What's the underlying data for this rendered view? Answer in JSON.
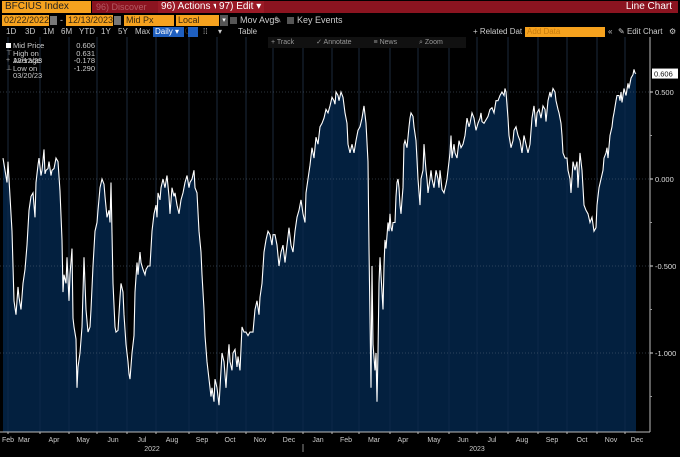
{
  "header": {
    "ticker": "BFCIUS Index",
    "discover_label": "96) Discover",
    "actions_label": "96) Actions",
    "edit_label": "97) Edit",
    "view_title": "Line Chart"
  },
  "controls": {
    "start_date": "02/22/2022",
    "end_date": "12/13/2023",
    "date_separator": "-",
    "field": "Mid Px",
    "currency": "Local CCY",
    "mov_avgs_label": "Mov Avgs",
    "key_events_label": "Key Events",
    "ranges": [
      "1D",
      "3D",
      "1M",
      "6M",
      "YTD",
      "1Y",
      "5Y",
      "Max"
    ],
    "frequency": "Daily",
    "table_label": "Table",
    "related_data_label": "+ Related Dat",
    "add_data_placeholder": "Add Data",
    "collapse_label": "«",
    "edit_chart_label": "Edit Chart"
  },
  "tools": {
    "track": "Track",
    "annotate": "Annotate",
    "news": "News",
    "zoom": "Zoom"
  },
  "legend": [
    {
      "name": "Mid Price",
      "value": "0.606",
      "glyph": "swatch"
    },
    {
      "name": "High on 12/12/23",
      "value": "0.631",
      "glyph": "T"
    },
    {
      "name": "Average",
      "value": "-0.178",
      "glyph": "+"
    },
    {
      "name": "Low on 03/20/23",
      "value": "-1.290",
      "glyph": "⊥"
    }
  ],
  "colors": {
    "ticker_bg": "#f6a21e",
    "header_red": "#8b1420",
    "fill": "#03203f",
    "line": "#ffffff",
    "daily_blue": "#1f5fbf"
  },
  "chart_data": {
    "type": "area",
    "title": "BFCIUS Index",
    "series_name": "Mid Price",
    "xlabel": "",
    "ylabel": "",
    "ylim": [
      -1.45,
      0.75
    ],
    "yticks": [
      0.5,
      0.0,
      -0.5,
      -1.0
    ],
    "ytick_labels": [
      "0.500",
      "0.000",
      "-0.500",
      "-1.000"
    ],
    "last_value": 0.606,
    "last_value_label": "0.606",
    "high": {
      "date": "12/12/23",
      "value": 0.631
    },
    "average": -0.178,
    "low": {
      "date": "03/20/23",
      "value": -1.29
    },
    "x_ticks": [
      "Feb",
      "Mar",
      "Apr",
      "May",
      "Jun",
      "Jul",
      "Aug",
      "Sep",
      "Oct",
      "Nov",
      "Dec",
      "Jan",
      "Feb",
      "Mar",
      "Apr",
      "May",
      "Jun",
      "Jul",
      "Aug",
      "Sep",
      "Oct",
      "Nov",
      "Dec"
    ],
    "x_years": [
      {
        "label": "2022",
        "pos": "Jul-Aug 2022"
      },
      {
        "label": "2023",
        "pos": "Jun-Jul 2023"
      }
    ],
    "grid": true,
    "approx_points": [
      [
        3,
        0.12
      ],
      [
        5,
        0.05
      ],
      [
        7,
        -0.02
      ],
      [
        8,
        0.1
      ],
      [
        10,
        -0.1
      ],
      [
        12,
        -0.3
      ],
      [
        13,
        -0.5
      ],
      [
        14,
        -0.7
      ],
      [
        16,
        -0.78
      ],
      [
        18,
        -0.62
      ],
      [
        19,
        -0.68
      ],
      [
        21,
        -0.75
      ],
      [
        23,
        -0.6
      ],
      [
        25,
        -0.52
      ],
      [
        27,
        -0.38
      ],
      [
        29,
        -0.18
      ],
      [
        31,
        -0.1
      ],
      [
        33,
        -0.08
      ],
      [
        35,
        -0.22
      ],
      [
        36,
        -0.02
      ],
      [
        38,
        0.08
      ],
      [
        39,
        0.12
      ],
      [
        41,
        0.02
      ],
      [
        42,
        0.05
      ],
      [
        44,
        0.17
      ],
      [
        45,
        0.03
      ],
      [
        46,
        0.05
      ],
      [
        48,
        0.06
      ],
      [
        49,
        0.1
      ],
      [
        51,
        0.02
      ],
      [
        52,
        0.05
      ],
      [
        54,
        0.06
      ],
      [
        56,
        0.12
      ],
      [
        58,
        0.1
      ],
      [
        60,
        -0.07
      ],
      [
        62,
        -0.35
      ],
      [
        63,
        -0.65
      ],
      [
        64,
        -0.55
      ],
      [
        66,
        -0.6
      ],
      [
        67,
        -0.45
      ],
      [
        69,
        -0.7
      ],
      [
        70,
        -0.55
      ],
      [
        72,
        -0.4
      ],
      [
        73,
        -0.8
      ],
      [
        74,
        -0.85
      ],
      [
        76,
        -0.92
      ],
      [
        77,
        -1.2
      ],
      [
        78,
        -1.08
      ],
      [
        80,
        -1.0
      ],
      [
        82,
        -0.85
      ],
      [
        83,
        -0.65
      ],
      [
        84,
        -0.45
      ],
      [
        86,
        -0.75
      ],
      [
        88,
        -0.88
      ],
      [
        90,
        -0.85
      ],
      [
        91,
        -0.75
      ],
      [
        93,
        -0.5
      ],
      [
        95,
        -0.3
      ],
      [
        97,
        -0.25
      ],
      [
        98,
        -0.18
      ],
      [
        100,
        -0.05
      ],
      [
        102,
        0.0
      ],
      [
        104,
        -0.03
      ],
      [
        105,
        -0.1
      ],
      [
        107,
        -0.22
      ],
      [
        109,
        -0.18
      ],
      [
        110,
        -0.25
      ],
      [
        111,
        -0.02
      ],
      [
        113,
        -0.6
      ],
      [
        115,
        -0.85
      ],
      [
        116,
        -0.88
      ],
      [
        118,
        -0.87
      ],
      [
        120,
        -0.68
      ],
      [
        121,
        -0.6
      ],
      [
        123,
        -0.65
      ],
      [
        124,
        -0.78
      ],
      [
        126,
        -0.95
      ],
      [
        128,
        -1.05
      ],
      [
        129,
        -1.12
      ],
      [
        130,
        -1.15
      ],
      [
        132,
        -1.0
      ],
      [
        134,
        -0.9
      ],
      [
        135,
        -0.65
      ],
      [
        137,
        -0.48
      ],
      [
        138,
        -0.55
      ],
      [
        140,
        -0.42
      ],
      [
        141,
        -0.48
      ],
      [
        143,
        -0.52
      ],
      [
        145,
        -0.55
      ],
      [
        146,
        -0.52
      ],
      [
        148,
        -0.5
      ],
      [
        150,
        -0.5
      ],
      [
        152,
        -0.3
      ],
      [
        154,
        -0.2
      ],
      [
        156,
        -0.15
      ],
      [
        157,
        -0.22
      ],
      [
        158,
        -0.08
      ],
      [
        160,
        -0.12
      ],
      [
        161,
        -0.05
      ],
      [
        163,
        0.0
      ],
      [
        165,
        -0.05
      ],
      [
        167,
        0.02
      ],
      [
        169,
        -0.1
      ],
      [
        170,
        -0.2
      ],
      [
        172,
        -0.05
      ],
      [
        174,
        -0.1
      ],
      [
        175,
        -0.08
      ],
      [
        177,
        -0.15
      ],
      [
        179,
        -0.2
      ],
      [
        181,
        -0.12
      ],
      [
        183,
        -0.08
      ],
      [
        185,
        -0.02
      ],
      [
        187,
        0.02
      ],
      [
        189,
        -0.05
      ],
      [
        190,
        -0.02
      ],
      [
        192,
        0.0
      ],
      [
        194,
        0.05
      ],
      [
        195,
        -0.05
      ],
      [
        197,
        -0.08
      ],
      [
        199,
        -0.3
      ],
      [
        201,
        -0.42
      ],
      [
        202,
        -0.55
      ],
      [
        204,
        -0.75
      ],
      [
        205,
        -0.9
      ],
      [
        207,
        -1.05
      ],
      [
        209,
        -1.15
      ],
      [
        211,
        -1.25
      ],
      [
        212,
        -1.2
      ],
      [
        214,
        -1.28
      ],
      [
        215,
        -1.15
      ],
      [
        217,
        -1.2
      ],
      [
        219,
        -1.3
      ],
      [
        221,
        -1.1
      ],
      [
        222,
        -1.0
      ],
      [
        224,
        -1.05
      ],
      [
        226,
        -1.2
      ],
      [
        227,
        -1.1
      ],
      [
        229,
        -0.95
      ],
      [
        230,
        -1.05
      ],
      [
        232,
        -1.1
      ],
      [
        233,
        -1.0
      ],
      [
        235,
        -0.98
      ],
      [
        237,
        -1.08
      ],
      [
        238,
        -1.02
      ],
      [
        240,
        -1.1
      ],
      [
        242,
        -0.85
      ],
      [
        244,
        -0.88
      ],
      [
        246,
        -0.88
      ],
      [
        248,
        -0.9
      ],
      [
        250,
        -0.88
      ],
      [
        253,
        -0.88
      ],
      [
        255,
        -0.75
      ],
      [
        257,
        -0.7
      ],
      [
        259,
        -0.78
      ],
      [
        260,
        -0.68
      ],
      [
        262,
        -0.6
      ],
      [
        264,
        -0.42
      ],
      [
        266,
        -0.35
      ],
      [
        268,
        -0.3
      ],
      [
        270,
        -0.32
      ],
      [
        272,
        -0.38
      ],
      [
        273,
        -0.32
      ],
      [
        275,
        -0.32
      ],
      [
        277,
        -0.38
      ],
      [
        279,
        -0.5
      ],
      [
        281,
        -0.42
      ],
      [
        283,
        -0.38
      ],
      [
        285,
        -0.48
      ],
      [
        287,
        -0.38
      ],
      [
        289,
        -0.28
      ],
      [
        291,
        -0.38
      ],
      [
        293,
        -0.42
      ],
      [
        295,
        -0.3
      ],
      [
        297,
        -0.22
      ],
      [
        299,
        -0.18
      ],
      [
        301,
        -0.12
      ],
      [
        303,
        -0.2
      ],
      [
        305,
        -0.25
      ],
      [
        306,
        -0.08
      ],
      [
        308,
        0.0
      ],
      [
        310,
        0.08
      ],
      [
        312,
        0.18
      ],
      [
        314,
        0.12
      ],
      [
        316,
        0.24
      ],
      [
        318,
        0.2
      ],
      [
        320,
        0.3
      ],
      [
        322,
        0.32
      ],
      [
        324,
        0.35
      ],
      [
        326,
        0.4
      ],
      [
        328,
        0.38
      ],
      [
        330,
        0.42
      ],
      [
        332,
        0.47
      ],
      [
        334,
        0.45
      ],
      [
        335,
        0.43
      ],
      [
        336,
        0.5
      ],
      [
        338,
        0.48
      ],
      [
        339,
        0.45
      ],
      [
        341,
        0.5
      ],
      [
        343,
        0.47
      ],
      [
        345,
        0.38
      ],
      [
        347,
        0.32
      ],
      [
        348,
        0.2
      ],
      [
        350,
        0.15
      ],
      [
        352,
        0.2
      ],
      [
        354,
        0.15
      ],
      [
        356,
        0.22
      ],
      [
        358,
        0.28
      ],
      [
        360,
        0.3
      ],
      [
        362,
        0.35
      ],
      [
        364,
        0.42
      ],
      [
        366,
        0.32
      ],
      [
        368,
        0.1
      ],
      [
        369,
        -0.4
      ],
      [
        370,
        -0.8
      ],
      [
        371,
        -1.2
      ],
      [
        372,
        -0.5
      ],
      [
        373,
        -0.95
      ],
      [
        375,
        -1.1
      ],
      [
        376,
        -1.0
      ],
      [
        377,
        -1.28
      ],
      [
        378,
        -1.0
      ],
      [
        379,
        -0.6
      ],
      [
        380,
        -0.45
      ],
      [
        381,
        -0.55
      ],
      [
        382,
        -0.65
      ],
      [
        383,
        -0.75
      ],
      [
        384,
        -0.5
      ],
      [
        385,
        -0.35
      ],
      [
        386,
        -0.4
      ],
      [
        388,
        -0.25
      ],
      [
        389,
        -0.3
      ],
      [
        390,
        -0.2
      ],
      [
        391,
        -0.28
      ],
      [
        392,
        -0.3
      ],
      [
        393,
        -0.25
      ],
      [
        395,
        -0.25
      ],
      [
        396,
        -0.1
      ],
      [
        397,
        -0.02
      ],
      [
        398,
        0.0
      ],
      [
        399,
        -0.05
      ],
      [
        400,
        -0.15
      ],
      [
        401,
        -0.2
      ],
      [
        402,
        -0.12
      ],
      [
        403,
        -0.05
      ],
      [
        404,
        0.2
      ],
      [
        405,
        0.22
      ],
      [
        407,
        0.18
      ],
      [
        409,
        0.3
      ],
      [
        410,
        0.35
      ],
      [
        411,
        0.38
      ],
      [
        413,
        0.36
      ],
      [
        414,
        0.3
      ],
      [
        416,
        0.22
      ],
      [
        418,
        0.0
      ],
      [
        420,
        -0.15
      ],
      [
        421,
        0.0
      ],
      [
        423,
        0.05
      ],
      [
        424,
        0.2
      ],
      [
        425,
        0.12
      ],
      [
        426,
        0.05
      ],
      [
        427,
        0.0
      ],
      [
        428,
        -0.08
      ],
      [
        430,
        0.0
      ],
      [
        431,
        0.05
      ],
      [
        432,
        0.0
      ],
      [
        434,
        -0.05
      ],
      [
        436,
        0.05
      ],
      [
        438,
        0.0
      ],
      [
        439,
        -0.05
      ],
      [
        440,
        0.05
      ],
      [
        442,
        -0.06
      ],
      [
        444,
        -0.08
      ],
      [
        446,
        -0.03
      ],
      [
        447,
        0.0
      ],
      [
        448,
        0.05
      ],
      [
        450,
        0.15
      ],
      [
        451,
        0.25
      ],
      [
        452,
        0.12
      ],
      [
        454,
        0.2
      ],
      [
        455,
        0.15
      ],
      [
        457,
        0.12
      ],
      [
        459,
        0.22
      ],
      [
        461,
        0.18
      ],
      [
        463,
        0.2
      ],
      [
        465,
        0.25
      ],
      [
        467,
        0.35
      ],
      [
        469,
        0.3
      ],
      [
        470,
        0.32
      ],
      [
        472,
        0.38
      ],
      [
        474,
        0.35
      ],
      [
        476,
        0.28
      ],
      [
        478,
        0.32
      ],
      [
        480,
        0.35
      ],
      [
        481,
        0.38
      ],
      [
        482,
        0.33
      ],
      [
        484,
        0.32
      ],
      [
        486,
        0.34
      ],
      [
        488,
        0.36
      ],
      [
        490,
        0.4
      ],
      [
        492,
        0.41
      ],
      [
        494,
        0.38
      ],
      [
        496,
        0.45
      ],
      [
        498,
        0.45
      ],
      [
        500,
        0.48
      ],
      [
        502,
        0.5
      ],
      [
        504,
        0.48
      ],
      [
        505,
        0.52
      ],
      [
        506,
        0.5
      ],
      [
        508,
        0.35
      ],
      [
        509,
        0.25
      ],
      [
        511,
        0.18
      ],
      [
        513,
        0.22
      ],
      [
        514,
        0.28
      ],
      [
        516,
        0.3
      ],
      [
        518,
        0.25
      ],
      [
        520,
        0.22
      ],
      [
        522,
        0.15
      ],
      [
        524,
        0.25
      ],
      [
        526,
        0.2
      ],
      [
        528,
        0.15
      ],
      [
        530,
        0.2
      ],
      [
        532,
        0.35
      ],
      [
        534,
        0.42
      ],
      [
        536,
        0.3
      ],
      [
        537,
        0.38
      ],
      [
        539,
        0.4
      ],
      [
        541,
        0.35
      ],
      [
        543,
        0.42
      ],
      [
        545,
        0.4
      ],
      [
        546,
        0.33
      ],
      [
        548,
        0.45
      ],
      [
        550,
        0.5
      ],
      [
        551,
        0.47
      ],
      [
        553,
        0.52
      ],
      [
        555,
        0.5
      ],
      [
        556,
        0.45
      ],
      [
        558,
        0.4
      ],
      [
        559,
        0.38
      ],
      [
        561,
        0.32
      ],
      [
        562,
        0.25
      ],
      [
        563,
        0.15
      ],
      [
        565,
        0.12
      ],
      [
        567,
        0.12
      ],
      [
        568,
        0.05
      ],
      [
        570,
        0.0
      ],
      [
        571,
        -0.08
      ],
      [
        573,
        0.1
      ],
      [
        575,
        0.05
      ],
      [
        577,
        0.1
      ],
      [
        578,
        -0.05
      ],
      [
        580,
        0.15
      ],
      [
        582,
        0.05
      ],
      [
        583,
        -0.05
      ],
      [
        584,
        -0.15
      ],
      [
        586,
        -0.18
      ],
      [
        588,
        -0.2
      ],
      [
        590,
        -0.25
      ],
      [
        592,
        -0.22
      ],
      [
        594,
        -0.3
      ],
      [
        596,
        -0.28
      ],
      [
        597,
        -0.15
      ],
      [
        599,
        -0.05
      ],
      [
        601,
        0.0
      ],
      [
        603,
        0.05
      ],
      [
        604,
        0.12
      ],
      [
        606,
        0.15
      ],
      [
        607,
        0.18
      ],
      [
        608,
        0.12
      ],
      [
        610,
        0.25
      ],
      [
        612,
        0.3
      ],
      [
        613,
        0.35
      ],
      [
        614,
        0.38
      ],
      [
        616,
        0.45
      ],
      [
        617,
        0.48
      ],
      [
        619,
        0.48
      ],
      [
        620,
        0.45
      ],
      [
        621,
        0.5
      ],
      [
        622,
        0.44
      ],
      [
        624,
        0.52
      ],
      [
        625,
        0.5
      ],
      [
        626,
        0.48
      ],
      [
        628,
        0.55
      ],
      [
        629,
        0.52
      ],
      [
        631,
        0.58
      ],
      [
        633,
        0.6
      ],
      [
        634,
        0.63
      ],
      [
        635,
        0.61
      ],
      [
        636,
        0.606
      ]
    ]
  }
}
